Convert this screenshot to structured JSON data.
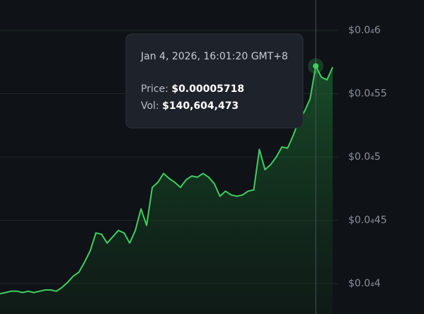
{
  "chart_data": {
    "type": "line",
    "color": "#3ecf5f",
    "values": [
      3.92e-05,
      3.93e-05,
      3.94e-05,
      3.94e-05,
      3.93e-05,
      3.94e-05,
      3.93e-05,
      3.94e-05,
      3.95e-05,
      3.95e-05,
      3.94e-05,
      3.97e-05,
      4.01e-05,
      4.06e-05,
      4.09e-05,
      4.17e-05,
      4.26e-05,
      4.4e-05,
      4.39e-05,
      4.32e-05,
      4.37e-05,
      4.42e-05,
      4.4e-05,
      4.32e-05,
      4.42e-05,
      4.59e-05,
      4.46e-05,
      4.76e-05,
      4.8e-05,
      4.87e-05,
      4.83e-05,
      4.8e-05,
      4.76e-05,
      4.82e-05,
      4.85e-05,
      4.84e-05,
      4.87e-05,
      4.84e-05,
      4.79e-05,
      4.69e-05,
      4.73e-05,
      4.7e-05,
      4.69e-05,
      4.7e-05,
      4.73e-05,
      4.74e-05,
      5.06e-05,
      4.9e-05,
      4.94e-05,
      5e-05,
      5.08e-05,
      5.07e-05,
      5.17e-05,
      5.29e-05,
      5.36e-05,
      5.46e-05,
      5.718e-05,
      5.63e-05,
      5.61e-05,
      5.71e-05
    ],
    "ylim": [
      3.76e-05,
      6.24e-05
    ],
    "yticks": [
      {
        "value": 6e-05,
        "label": "$0.0₄6"
      },
      {
        "value": 5.5e-05,
        "label": "$0.0₄55"
      },
      {
        "value": 5e-05,
        "label": "$0.0₄5"
      },
      {
        "value": 4.5e-05,
        "label": "$0.0₄45"
      },
      {
        "value": 4e-05,
        "label": "$0.0₄4"
      }
    ],
    "grid": true,
    "tooltip": {
      "index": 56,
      "date": "Jan 4, 2026, 16:01:20 GMT+8",
      "price_label": "Price:",
      "price": "$0.00005718",
      "vol_label": "Vol:",
      "vol": "$140,604,473"
    }
  }
}
